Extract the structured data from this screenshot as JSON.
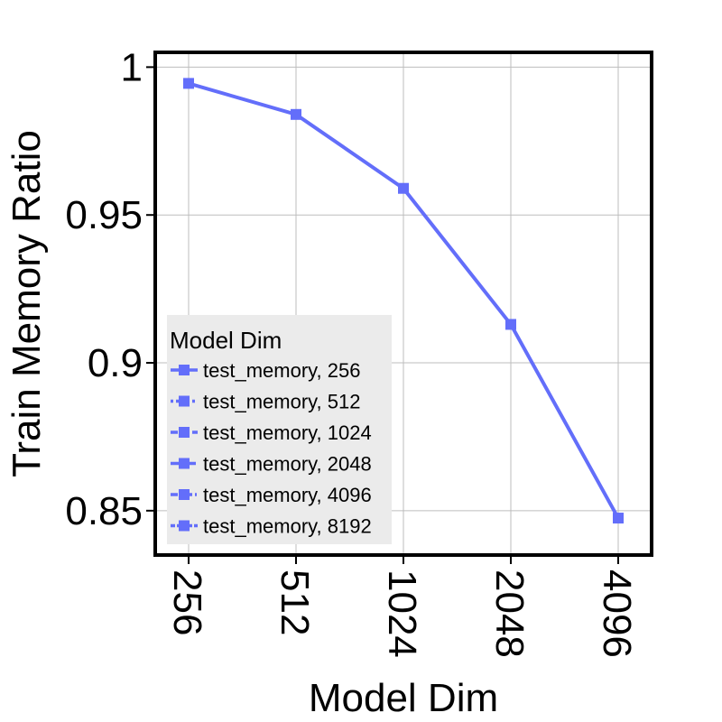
{
  "chart_data": {
    "type": "line",
    "title": "",
    "xlabel": "Model Dim",
    "ylabel": "Train Memory Ratio",
    "categories": [
      "256",
      "512",
      "1024",
      "2048",
      "4096"
    ],
    "ylim": [
      0.835,
      1.005
    ],
    "yticks": [
      0.85,
      0.9,
      0.95,
      1
    ],
    "ytick_labels": [
      "0.85",
      "0.9",
      "0.95",
      "1"
    ],
    "grid": true,
    "legend": {
      "title": "Model Dim",
      "placement": "lower-left",
      "entries": [
        {
          "label": "test_memory, 256",
          "dash": "solid"
        },
        {
          "label": "test_memory, 512",
          "dash": "dotted"
        },
        {
          "label": "test_memory, 1024",
          "dash": "dashed"
        },
        {
          "label": "test_memory, 2048",
          "dash": "longdash"
        },
        {
          "label": "test_memory, 4096",
          "dash": "dashdot"
        },
        {
          "label": "test_memory, 8192",
          "dash": "twodash"
        }
      ]
    },
    "series": [
      {
        "values": [
          0.9945,
          0.984,
          0.959,
          0.913,
          0.8475
        ]
      }
    ],
    "colors": {
      "series": "#636efa",
      "grid": "#bdbdbd",
      "legend_bg": "#ebebeb"
    }
  }
}
